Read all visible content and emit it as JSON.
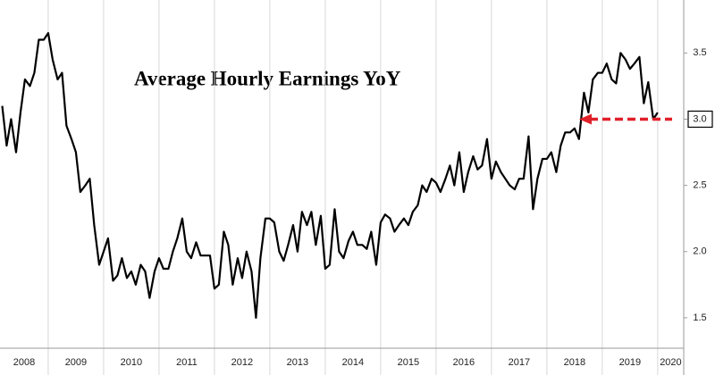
{
  "chart_data": {
    "type": "line",
    "title": "Average Hourly Earnings YoY",
    "x": [
      2008.17,
      2008.25,
      2008.33,
      2008.42,
      2008.5,
      2008.58,
      2008.67,
      2008.75,
      2008.83,
      2008.92,
      2009,
      2009.08,
      2009.17,
      2009.25,
      2009.33,
      2009.42,
      2009.5,
      2009.58,
      2009.67,
      2009.75,
      2009.83,
      2009.92,
      2010,
      2010.08,
      2010.17,
      2010.25,
      2010.33,
      2010.42,
      2010.5,
      2010.58,
      2010.67,
      2010.75,
      2010.83,
      2010.92,
      2011,
      2011.08,
      2011.17,
      2011.25,
      2011.33,
      2011.42,
      2011.5,
      2011.58,
      2011.67,
      2011.75,
      2011.83,
      2011.92,
      2012,
      2012.08,
      2012.17,
      2012.25,
      2012.33,
      2012.42,
      2012.5,
      2012.58,
      2012.67,
      2012.75,
      2012.83,
      2012.92,
      2013,
      2013.08,
      2013.17,
      2013.25,
      2013.33,
      2013.42,
      2013.5,
      2013.58,
      2013.67,
      2013.75,
      2013.83,
      2013.92,
      2014,
      2014.08,
      2014.17,
      2014.25,
      2014.33,
      2014.42,
      2014.5,
      2014.58,
      2014.67,
      2014.75,
      2014.83,
      2014.92,
      2015,
      2015.08,
      2015.17,
      2015.25,
      2015.33,
      2015.42,
      2015.5,
      2015.58,
      2015.67,
      2015.75,
      2015.83,
      2015.92,
      2016,
      2016.08,
      2016.17,
      2016.25,
      2016.33,
      2016.42,
      2016.5,
      2016.58,
      2016.67,
      2016.75,
      2016.83,
      2016.92,
      2017,
      2017.08,
      2017.17,
      2017.25,
      2017.33,
      2017.42,
      2017.5,
      2017.58,
      2017.67,
      2017.75,
      2017.83,
      2017.92,
      2018,
      2018.08,
      2018.17,
      2018.25,
      2018.33,
      2018.42,
      2018.5,
      2018.58,
      2018.67,
      2018.75,
      2018.83,
      2018.92,
      2019,
      2019.08,
      2019.17,
      2019.25,
      2019.33,
      2019.42,
      2019.5,
      2019.58,
      2019.67,
      2019.75,
      2019.83,
      2019.92,
      2020
    ],
    "series": [
      {
        "color": "#000000",
        "values": [
          3.1,
          2.8,
          3.0,
          2.75,
          3.05,
          3.3,
          3.25,
          3.35,
          3.6,
          3.6,
          3.65,
          3.45,
          3.3,
          3.35,
          2.95,
          2.85,
          2.75,
          2.45,
          2.5,
          2.55,
          2.2,
          1.9,
          2.0,
          2.1,
          1.78,
          1.82,
          1.95,
          1.8,
          1.85,
          1.75,
          1.9,
          1.85,
          1.65,
          1.85,
          1.95,
          1.87,
          1.87,
          2.0,
          2.1,
          2.25,
          2.0,
          1.95,
          2.07,
          1.97,
          1.97,
          1.97,
          1.72,
          1.75,
          2.15,
          2.05,
          1.75,
          1.95,
          1.8,
          2.0,
          1.85,
          1.5,
          1.95,
          2.25,
          2.25,
          2.22,
          2.0,
          1.93,
          2.05,
          2.2,
          2.0,
          2.3,
          2.2,
          2.3,
          2.05,
          2.27,
          1.87,
          1.9,
          2.32,
          2.0,
          1.95,
          2.08,
          2.15,
          2.05,
          2.05,
          2.02,
          2.15,
          1.9,
          2.22,
          2.28,
          2.25,
          2.15,
          2.2,
          2.25,
          2.2,
          2.3,
          2.35,
          2.5,
          2.45,
          2.55,
          2.52,
          2.45,
          2.55,
          2.65,
          2.5,
          2.75,
          2.45,
          2.6,
          2.72,
          2.62,
          2.65,
          2.85,
          2.55,
          2.68,
          2.6,
          2.55,
          2.5,
          2.47,
          2.55,
          2.55,
          2.87,
          2.32,
          2.55,
          2.7,
          2.7,
          2.75,
          2.6,
          2.8,
          2.9,
          2.9,
          2.93,
          2.85,
          3.2,
          3.05,
          3.3,
          3.35,
          3.35,
          3.42,
          3.3,
          3.27,
          3.5,
          3.45,
          3.38,
          3.42,
          3.47,
          3.12,
          3.28,
          3.0,
          3.05
        ]
      }
    ],
    "xlim": [
      2008.13,
      2020.47
    ],
    "xticks": [
      2008,
      2009,
      2010,
      2011,
      2012,
      2013,
      2014,
      2015,
      2016,
      2017,
      2018,
      2019,
      2020
    ],
    "ylim": [
      1.27,
      3.9
    ],
    "yticks": [
      1.5,
      {
        "value": 2,
        "label": "2.0"
      },
      2.5,
      {
        "value": 3,
        "label": "3.0"
      },
      3.5
    ],
    "grid": true,
    "reference_line": {
      "value": 3,
      "color": "#e0202a"
    }
  }
}
